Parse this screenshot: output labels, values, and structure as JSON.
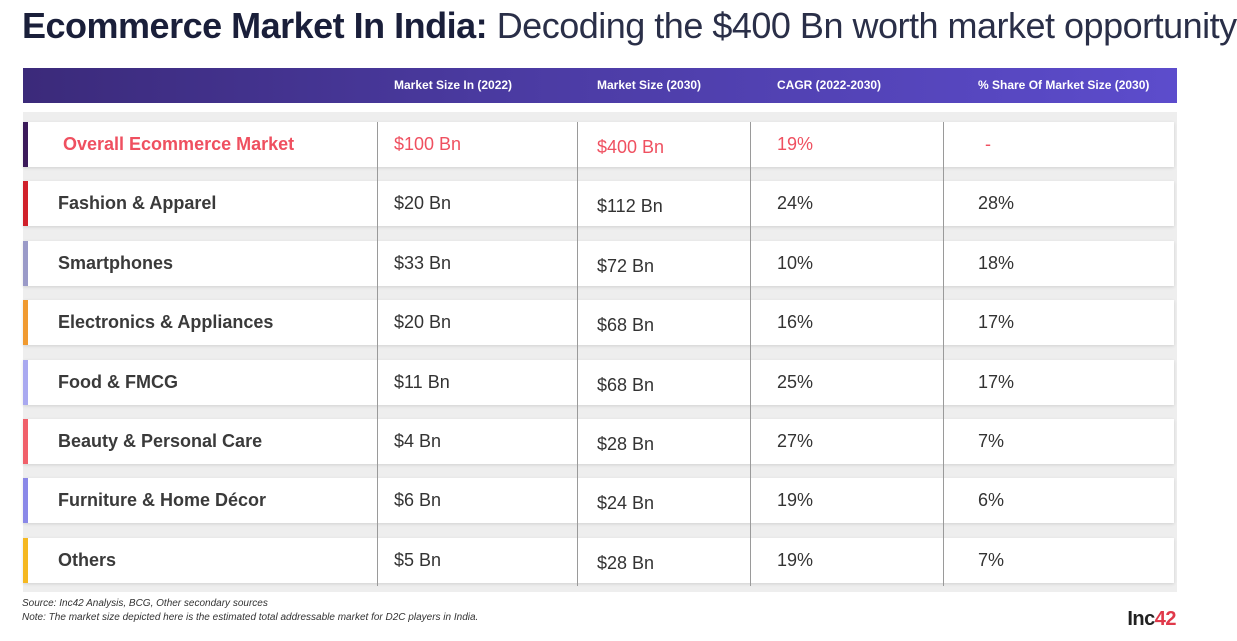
{
  "title": {
    "bold": "Ecommerce Market In India:",
    "light": "Decoding the $400 Bn worth market opportunity"
  },
  "chart_data": {
    "type": "table",
    "columns": [
      "",
      "Market Size In (2022)",
      "Market Size (2030)",
      "CAGR (2022-2030)",
      "% Share Of Market Size (2030)"
    ],
    "rows": [
      {
        "name": "Overall Ecommerce Market",
        "size_2022": "$100 Bn",
        "size_2030": "$400 Bn",
        "cagr": "19%",
        "share": "-",
        "accent": "#3b1a5a",
        "highlight": true
      },
      {
        "name": "Fashion & Apparel",
        "size_2022": "$20 Bn",
        "size_2030": "$112 Bn",
        "cagr": "24%",
        "share": "28%",
        "accent": "#d0202a"
      },
      {
        "name": "Smartphones",
        "size_2022": "$33 Bn",
        "size_2030": "$72 Bn",
        "cagr": "10%",
        "share": "18%",
        "accent": "#9a9ac8"
      },
      {
        "name": "Electronics & Appliances",
        "size_2022": "$20 Bn",
        "size_2030": "$68 Bn",
        "cagr": "16%",
        "share": "17%",
        "accent": "#f09a30"
      },
      {
        "name": "Food & FMCG",
        "size_2022": "$11 Bn",
        "size_2030": "$68 Bn",
        "cagr": "25%",
        "share": "17%",
        "accent": "#a9a9f0"
      },
      {
        "name": "Beauty & Personal Care",
        "size_2022": "$4 Bn",
        "size_2030": "$28 Bn",
        "cagr": "27%",
        "share": "7%",
        "accent": "#f0606a"
      },
      {
        "name": "Furniture & Home Décor",
        "size_2022": "$6 Bn",
        "size_2030": "$24 Bn",
        "cagr": "19%",
        "share": "6%",
        "accent": "#8a88e8"
      },
      {
        "name": "Others",
        "size_2022": "$5 Bn",
        "size_2030": "$28 Bn",
        "cagr": "19%",
        "share": "7%",
        "accent": "#f5b820"
      }
    ]
  },
  "colors": {
    "header_gradient_start": "#3b2a7a",
    "header_gradient_end": "#5c4ccc",
    "highlight_text": "#ef5060"
  },
  "footer": {
    "source": "Source: Inc42 Analysis, BCG, Other secondary sources",
    "note": "Note: The market size depicted here is the estimated total addressable market for D2C players in India."
  },
  "logo": {
    "text": "Inc",
    "accent": "42"
  }
}
